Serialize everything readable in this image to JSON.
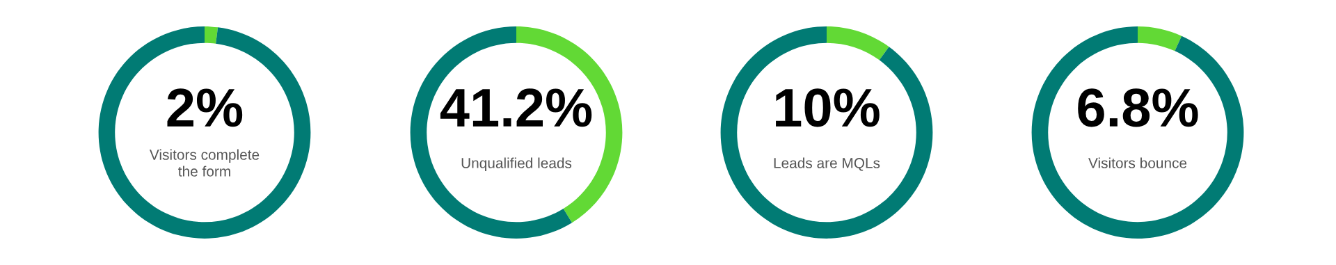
{
  "chart_data": [
    {
      "type": "donut",
      "categories": [
        null,
        null
      ],
      "values": [
        2,
        98
      ],
      "colors": [
        "#62d935",
        "#017b74"
      ],
      "value_labels": [
        "2%",
        null
      ],
      "annotations": [
        "Visitors complete\nthe form"
      ]
    },
    {
      "type": "donut",
      "categories": [
        null,
        null
      ],
      "values": [
        41.2,
        58.8
      ],
      "colors": [
        "#62d935",
        "#017b74"
      ],
      "value_labels": [
        "41.2%",
        null
      ],
      "annotations": [
        "Unqualified leads"
      ]
    },
    {
      "type": "donut",
      "categories": [
        null,
        null
      ],
      "values": [
        10,
        90
      ],
      "colors": [
        "#62d935",
        "#017b74"
      ],
      "value_labels": [
        "10%",
        null
      ],
      "annotations": [
        "Leads are MQLs"
      ]
    },
    {
      "type": "donut",
      "categories": [
        null,
        null
      ],
      "values": [
        6.8,
        93.2
      ],
      "colors": [
        "#62d935",
        "#017b74"
      ],
      "value_labels": [
        "6.8%",
        null
      ],
      "annotations": [
        "Visitors bounce"
      ]
    }
  ]
}
